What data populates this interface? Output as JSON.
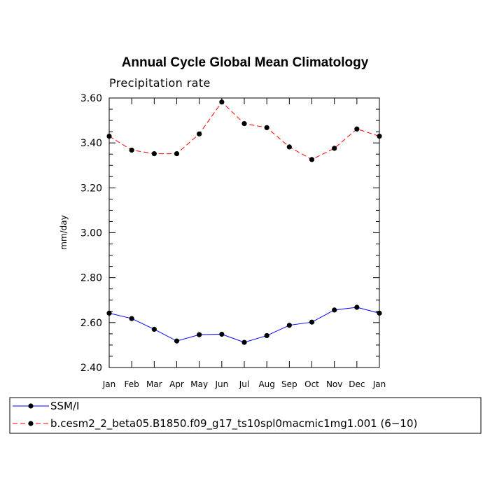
{
  "chart_data": {
    "type": "line",
    "title": "Annual Cycle Global Mean Climatology",
    "subtitle": "Precipitation rate",
    "ylabel": "mm/day",
    "xlabel": "",
    "categories": [
      "Jan",
      "Feb",
      "Mar",
      "Apr",
      "May",
      "Jun",
      "Jul",
      "Aug",
      "Sep",
      "Oct",
      "Nov",
      "Dec",
      "Jan"
    ],
    "ylim": [
      2.4,
      3.6
    ],
    "yticks": [
      "2.40",
      "2.60",
      "2.80",
      "3.00",
      "3.20",
      "3.40",
      "3.60"
    ],
    "ytick_values": [
      2.4,
      2.6,
      2.8,
      3.0,
      3.2,
      3.4,
      3.6
    ],
    "grid": false,
    "legend_position": "bottom",
    "series": [
      {
        "name": "SSM/I",
        "color": "#0000ff",
        "line_style": "solid",
        "marker": "filled-circle",
        "values": [
          2.642,
          2.618,
          2.57,
          2.518,
          2.546,
          2.548,
          2.512,
          2.542,
          2.588,
          2.602,
          2.656,
          2.668,
          2.642
        ]
      },
      {
        "name": "b.cesm2_2_beta05.B1850.f09_g17_ts10spl0macmic1mg1.001 (6−10)",
        "color": "#ff0000",
        "line_style": "dashed",
        "marker": "filled-circle",
        "values": [
          3.43,
          3.368,
          3.352,
          3.352,
          3.44,
          3.582,
          3.486,
          3.468,
          3.382,
          3.326,
          3.376,
          3.462,
          3.43
        ]
      }
    ]
  }
}
